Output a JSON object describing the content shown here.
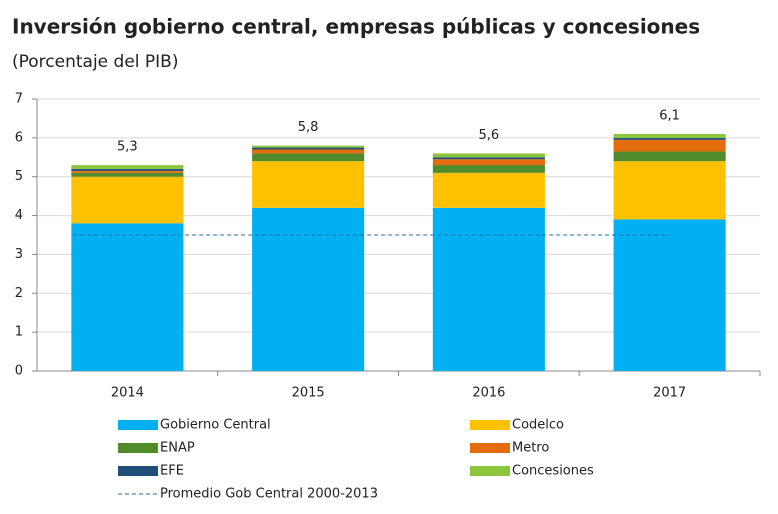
{
  "chart_data": {
    "type": "stacked_bar",
    "title": "Inversión gobierno central, empresas públicas y concesiones",
    "subtitle": "(Porcentaje del PIB)",
    "categories": [
      "2014",
      "2015",
      "2016",
      "2017"
    ],
    "series": [
      {
        "name": "Gobierno Central",
        "color": "#00b0f0",
        "values": [
          3.8,
          4.2,
          4.2,
          3.9
        ]
      },
      {
        "name": "Codelco",
        "color": "#ffc000",
        "values": [
          1.2,
          1.2,
          0.9,
          1.5
        ]
      },
      {
        "name": "ENAP",
        "color": "#4f8a2b",
        "values": [
          0.1,
          0.2,
          0.2,
          0.25
        ]
      },
      {
        "name": "Metro",
        "color": "#e46c0a",
        "values": [
          0.05,
          0.1,
          0.15,
          0.3
        ]
      },
      {
        "name": "EFE",
        "color": "#1f4e79",
        "values": [
          0.05,
          0.05,
          0.05,
          0.05
        ]
      },
      {
        "name": "Concesiones",
        "color": "#8cc63f",
        "values": [
          0.1,
          0.05,
          0.1,
          0.1
        ]
      }
    ],
    "totals": [
      5.3,
      5.8,
      5.6,
      6.1
    ],
    "value_labels": [
      "5,3",
      "5,8",
      "5,6",
      "6,1"
    ],
    "reference_line": {
      "name": "Promedio Gob Central 2000-2013",
      "value": 3.5,
      "color": "#1f6fa8"
    },
    "ylim": [
      0,
      7
    ],
    "yticks": [
      0,
      1,
      2,
      3,
      4,
      5,
      6,
      7
    ],
    "grid": true
  }
}
